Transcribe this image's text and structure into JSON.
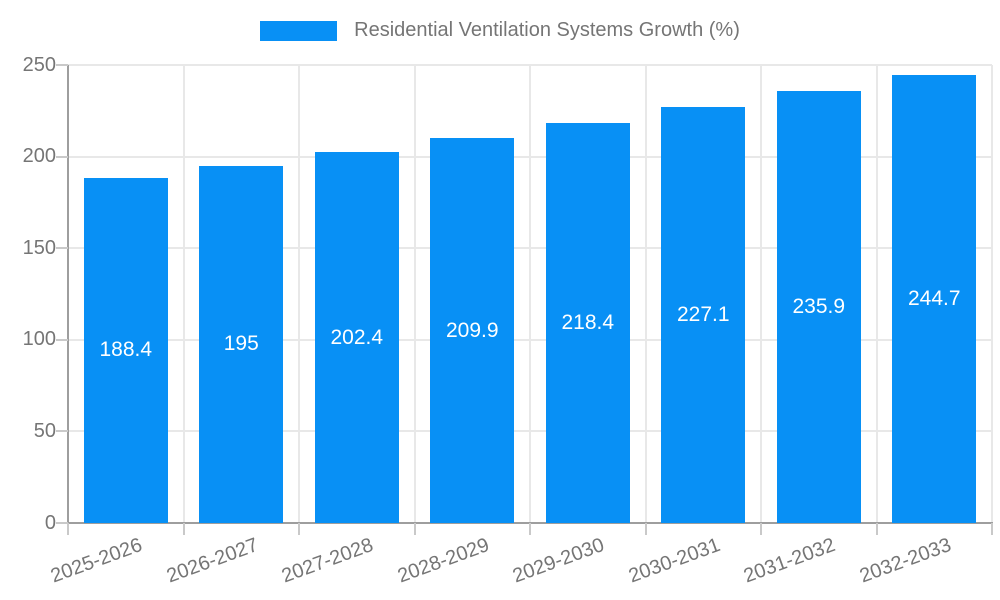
{
  "legend": {
    "label": "Residential Ventilation Systems Growth (%)"
  },
  "chart_data": {
    "type": "bar",
    "title": "Residential Ventilation Systems Growth (%)",
    "categories": [
      "2025-2026",
      "2026-2027",
      "2027-2028",
      "2028-2029",
      "2029-2030",
      "2030-2031",
      "2031-2032",
      "2032-2033"
    ],
    "values": [
      188.4,
      195,
      202.4,
      209.9,
      218.4,
      227.1,
      235.9,
      244.7
    ],
    "value_labels": [
      "188.4",
      "195",
      "202.4",
      "209.9",
      "218.4",
      "227.1",
      "235.9",
      "244.7"
    ],
    "xlabel": "",
    "ylabel": "",
    "ylim": [
      0,
      250
    ],
    "yticks": [
      0,
      50,
      100,
      150,
      200,
      250
    ],
    "grid": true,
    "legend_position": "top-center",
    "bar_label_position": "center",
    "x_label_rotation_deg": -20
  },
  "colors": {
    "bar": "#0890F5",
    "grid": "#E8E8E8",
    "axis": "#9E9E9E",
    "tick_mark": "#C9C9C9",
    "tick_text": "#757575",
    "value_text": "#FFFFFF",
    "legend_text": "#757575",
    "background": "#FFFFFF"
  }
}
